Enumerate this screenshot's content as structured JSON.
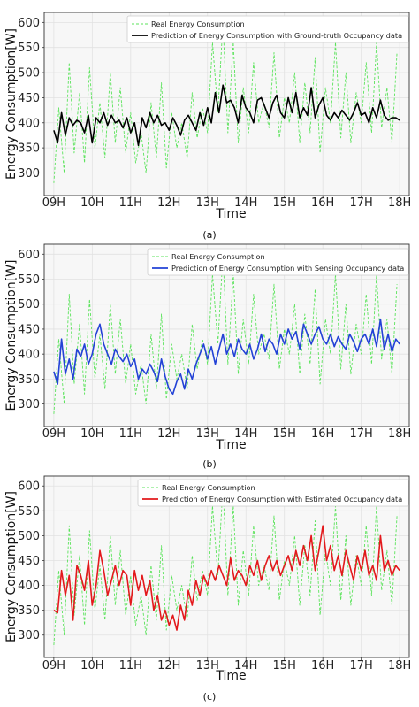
{
  "chart_data": [
    {
      "type": "line",
      "panel_label": "(a)",
      "xlabel": "Time",
      "ylabel": "Energy Consumption[W]",
      "x_ticks": [
        "09H",
        "10H",
        "11H",
        "12H",
        "13H",
        "14H",
        "15H",
        "16H",
        "17H",
        "18H"
      ],
      "xlim": [
        8.75,
        18.25
      ],
      "y_ticks": [
        300,
        350,
        400,
        450,
        500,
        550,
        600
      ],
      "ylim": [
        255,
        620
      ],
      "grid": true,
      "legend_position": "top-right",
      "series": [
        {
          "name": "Real Energy Consumption",
          "color": "#5be35b",
          "style": "dashed",
          "x": [
            9.0,
            9.13,
            9.27,
            9.4,
            9.53,
            9.67,
            9.8,
            9.93,
            10.07,
            10.2,
            10.33,
            10.47,
            10.6,
            10.73,
            10.87,
            11.0,
            11.13,
            11.27,
            11.4,
            11.53,
            11.67,
            11.8,
            11.93,
            12.07,
            12.2,
            12.33,
            12.47,
            12.6,
            12.73,
            12.87,
            13.0,
            13.13,
            13.27,
            13.4,
            13.53,
            13.67,
            13.8,
            13.93,
            14.07,
            14.2,
            14.33,
            14.47,
            14.6,
            14.73,
            14.87,
            15.0,
            15.13,
            15.27,
            15.4,
            15.53,
            15.67,
            15.8,
            15.93,
            16.07,
            16.2,
            16.33,
            16.47,
            16.6,
            16.73,
            16.87,
            17.0,
            17.13,
            17.27,
            17.4,
            17.53,
            17.67,
            17.8,
            17.93
          ],
          "y": [
            280,
            430,
            300,
            520,
            340,
            460,
            320,
            510,
            350,
            440,
            330,
            500,
            360,
            470,
            340,
            420,
            320,
            380,
            300,
            440,
            330,
            480,
            310,
            420,
            350,
            400,
            330,
            460,
            370,
            430,
            380,
            560,
            420,
            600,
            380,
            560,
            360,
            470,
            380,
            520,
            400,
            440,
            390,
            540,
            370,
            450,
            400,
            500,
            360,
            480,
            380,
            530,
            340,
            470,
            400,
            560,
            370,
            500,
            360,
            460,
            400,
            520,
            380,
            560,
            390,
            470,
            360,
            540
          ]
        },
        {
          "name": "Prediction of Energy Consumption with Ground-truth Occupancy data",
          "color": "#000000",
          "style": "solid",
          "x": [
            9.0,
            9.1,
            9.2,
            9.3,
            9.4,
            9.5,
            9.6,
            9.7,
            9.8,
            9.9,
            10.0,
            10.1,
            10.2,
            10.3,
            10.4,
            10.5,
            10.6,
            10.7,
            10.8,
            10.9,
            11.0,
            11.1,
            11.2,
            11.3,
            11.4,
            11.5,
            11.6,
            11.7,
            11.8,
            11.9,
            12.0,
            12.1,
            12.2,
            12.3,
            12.4,
            12.5,
            12.6,
            12.7,
            12.8,
            12.9,
            13.0,
            13.1,
            13.2,
            13.3,
            13.4,
            13.5,
            13.6,
            13.7,
            13.8,
            13.9,
            14.0,
            14.1,
            14.2,
            14.3,
            14.4,
            14.5,
            14.6,
            14.7,
            14.8,
            14.9,
            15.0,
            15.1,
            15.2,
            15.3,
            15.4,
            15.5,
            15.6,
            15.7,
            15.8,
            15.9,
            16.0,
            16.1,
            16.2,
            16.3,
            16.4,
            16.5,
            16.6,
            16.7,
            16.8,
            16.9,
            17.0,
            17.1,
            17.2,
            17.3,
            17.4,
            17.5,
            17.6,
            17.7,
            17.8,
            17.9,
            18.0
          ],
          "y": [
            385,
            360,
            420,
            375,
            410,
            395,
            405,
            400,
            380,
            415,
            360,
            410,
            400,
            420,
            395,
            415,
            400,
            405,
            390,
            410,
            380,
            400,
            355,
            410,
            390,
            420,
            400,
            415,
            395,
            400,
            385,
            410,
            395,
            375,
            405,
            415,
            400,
            385,
            420,
            395,
            430,
            400,
            460,
            420,
            475,
            440,
            445,
            430,
            400,
            455,
            430,
            420,
            400,
            445,
            450,
            430,
            410,
            440,
            455,
            420,
            410,
            450,
            420,
            460,
            410,
            430,
            415,
            470,
            410,
            435,
            450,
            415,
            405,
            420,
            410,
            425,
            415,
            405,
            420,
            440,
            415,
            420,
            400,
            430,
            410,
            445,
            415,
            405,
            410,
            410,
            405
          ]
        }
      ]
    },
    {
      "type": "line",
      "panel_label": "(b)",
      "xlabel": "Time",
      "ylabel": "Energy Consumption[W]",
      "x_ticks": [
        "09H",
        "10H",
        "11H",
        "12H",
        "13H",
        "14H",
        "15H",
        "16H",
        "17H",
        "18H"
      ],
      "xlim": [
        8.75,
        18.25
      ],
      "y_ticks": [
        300,
        350,
        400,
        450,
        500,
        550,
        600
      ],
      "ylim": [
        255,
        620
      ],
      "grid": true,
      "legend_position": "top-right",
      "series": [
        {
          "name": "Real Energy Consumption",
          "color": "#5be35b",
          "style": "dashed",
          "x": [
            9.0,
            9.13,
            9.27,
            9.4,
            9.53,
            9.67,
            9.8,
            9.93,
            10.07,
            10.2,
            10.33,
            10.47,
            10.6,
            10.73,
            10.87,
            11.0,
            11.13,
            11.27,
            11.4,
            11.53,
            11.67,
            11.8,
            11.93,
            12.07,
            12.2,
            12.33,
            12.47,
            12.6,
            12.73,
            12.87,
            13.0,
            13.13,
            13.27,
            13.4,
            13.53,
            13.67,
            13.8,
            13.93,
            14.07,
            14.2,
            14.33,
            14.47,
            14.6,
            14.73,
            14.87,
            15.0,
            15.13,
            15.27,
            15.4,
            15.53,
            15.67,
            15.8,
            15.93,
            16.07,
            16.2,
            16.33,
            16.47,
            16.6,
            16.73,
            16.87,
            17.0,
            17.13,
            17.27,
            17.4,
            17.53,
            17.67,
            17.8,
            17.93
          ],
          "y": [
            280,
            430,
            300,
            520,
            340,
            460,
            320,
            510,
            350,
            440,
            330,
            500,
            360,
            470,
            340,
            420,
            320,
            380,
            300,
            440,
            330,
            480,
            310,
            420,
            350,
            400,
            330,
            460,
            370,
            430,
            380,
            560,
            420,
            600,
            380,
            560,
            360,
            470,
            380,
            520,
            400,
            440,
            390,
            540,
            370,
            450,
            400,
            500,
            360,
            480,
            380,
            530,
            340,
            470,
            400,
            560,
            370,
            500,
            360,
            460,
            400,
            520,
            380,
            560,
            390,
            470,
            360,
            540
          ]
        },
        {
          "name": "Prediction of Energy Consumption with Sensing Occupancy data",
          "color": "#2342d6",
          "style": "solid",
          "x": [
            9.0,
            9.1,
            9.2,
            9.3,
            9.4,
            9.5,
            9.6,
            9.7,
            9.8,
            9.9,
            10.0,
            10.1,
            10.2,
            10.3,
            10.4,
            10.5,
            10.6,
            10.7,
            10.8,
            10.9,
            11.0,
            11.1,
            11.2,
            11.3,
            11.4,
            11.5,
            11.6,
            11.7,
            11.8,
            11.9,
            12.0,
            12.1,
            12.2,
            12.3,
            12.4,
            12.5,
            12.6,
            12.7,
            12.8,
            12.9,
            13.0,
            13.1,
            13.2,
            13.3,
            13.4,
            13.5,
            13.6,
            13.7,
            13.8,
            13.9,
            14.0,
            14.1,
            14.2,
            14.3,
            14.4,
            14.5,
            14.6,
            14.7,
            14.8,
            14.9,
            15.0,
            15.1,
            15.2,
            15.3,
            15.4,
            15.5,
            15.6,
            15.7,
            15.8,
            15.9,
            16.0,
            16.1,
            16.2,
            16.3,
            16.4,
            16.5,
            16.6,
            16.7,
            16.8,
            16.9,
            17.0,
            17.1,
            17.2,
            17.3,
            17.4,
            17.5,
            17.6,
            17.7,
            17.8,
            17.9,
            18.0
          ],
          "y": [
            365,
            340,
            430,
            360,
            390,
            350,
            410,
            395,
            420,
            380,
            400,
            440,
            460,
            420,
            400,
            380,
            410,
            395,
            385,
            400,
            375,
            390,
            350,
            370,
            360,
            380,
            365,
            345,
            390,
            355,
            330,
            320,
            345,
            360,
            330,
            370,
            350,
            380,
            400,
            420,
            390,
            415,
            380,
            410,
            440,
            400,
            420,
            395,
            430,
            410,
            400,
            420,
            390,
            410,
            440,
            405,
            430,
            420,
            400,
            440,
            420,
            450,
            430,
            445,
            410,
            460,
            440,
            420,
            440,
            455,
            430,
            420,
            440,
            415,
            435,
            420,
            410,
            440,
            425,
            405,
            430,
            440,
            420,
            450,
            415,
            470,
            410,
            440,
            405,
            430,
            420
          ]
        }
      ]
    },
    {
      "type": "line",
      "panel_label": "(c)",
      "xlabel": "Time",
      "ylabel": "Energy Consumption[W]",
      "x_ticks": [
        "09H",
        "10H",
        "11H",
        "12H",
        "13H",
        "14H",
        "15H",
        "16H",
        "17H",
        "18H"
      ],
      "xlim": [
        8.75,
        18.25
      ],
      "y_ticks": [
        300,
        350,
        400,
        450,
        500,
        550,
        600
      ],
      "ylim": [
        255,
        620
      ],
      "grid": true,
      "legend_position": "top-right",
      "series": [
        {
          "name": "Real Energy Consumption",
          "color": "#5be35b",
          "style": "dashed",
          "x": [
            9.0,
            9.13,
            9.27,
            9.4,
            9.53,
            9.67,
            9.8,
            9.93,
            10.07,
            10.2,
            10.33,
            10.47,
            10.6,
            10.73,
            10.87,
            11.0,
            11.13,
            11.27,
            11.4,
            11.53,
            11.67,
            11.8,
            11.93,
            12.07,
            12.2,
            12.33,
            12.47,
            12.6,
            12.73,
            12.87,
            13.0,
            13.13,
            13.27,
            13.4,
            13.53,
            13.67,
            13.8,
            13.93,
            14.07,
            14.2,
            14.33,
            14.47,
            14.6,
            14.73,
            14.87,
            15.0,
            15.13,
            15.27,
            15.4,
            15.53,
            15.67,
            15.8,
            15.93,
            16.07,
            16.2,
            16.33,
            16.47,
            16.6,
            16.73,
            16.87,
            17.0,
            17.13,
            17.27,
            17.4,
            17.53,
            17.67,
            17.8,
            17.93
          ],
          "y": [
            280,
            430,
            300,
            520,
            340,
            460,
            320,
            510,
            350,
            440,
            330,
            500,
            360,
            470,
            340,
            420,
            320,
            380,
            300,
            440,
            330,
            480,
            310,
            420,
            350,
            400,
            330,
            460,
            370,
            430,
            380,
            560,
            420,
            600,
            380,
            560,
            360,
            470,
            380,
            520,
            400,
            440,
            390,
            540,
            370,
            450,
            400,
            500,
            360,
            480,
            380,
            530,
            340,
            470,
            400,
            560,
            370,
            500,
            360,
            460,
            400,
            520,
            380,
            560,
            390,
            470,
            360,
            540
          ]
        },
        {
          "name": "Prediction of Energy Consumption with Estimated Occupancy data",
          "color": "#e3191c",
          "style": "solid",
          "x": [
            9.0,
            9.1,
            9.2,
            9.3,
            9.4,
            9.5,
            9.6,
            9.7,
            9.8,
            9.9,
            10.0,
            10.1,
            10.2,
            10.3,
            10.4,
            10.5,
            10.6,
            10.7,
            10.8,
            10.9,
            11.0,
            11.1,
            11.2,
            11.3,
            11.4,
            11.5,
            11.6,
            11.7,
            11.8,
            11.9,
            12.0,
            12.1,
            12.2,
            12.3,
            12.4,
            12.5,
            12.6,
            12.7,
            12.8,
            12.9,
            13.0,
            13.1,
            13.2,
            13.3,
            13.4,
            13.5,
            13.6,
            13.7,
            13.8,
            13.9,
            14.0,
            14.1,
            14.2,
            14.3,
            14.4,
            14.5,
            14.6,
            14.7,
            14.8,
            14.9,
            15.0,
            15.1,
            15.2,
            15.3,
            15.4,
            15.5,
            15.6,
            15.7,
            15.8,
            15.9,
            16.0,
            16.1,
            16.2,
            16.3,
            16.4,
            16.5,
            16.6,
            16.7,
            16.8,
            16.9,
            17.0,
            17.1,
            17.2,
            17.3,
            17.4,
            17.5,
            17.6,
            17.7,
            17.8,
            17.9,
            18.0
          ],
          "y": [
            350,
            345,
            430,
            380,
            420,
            330,
            440,
            420,
            390,
            450,
            360,
            400,
            470,
            430,
            380,
            410,
            440,
            400,
            430,
            420,
            360,
            430,
            390,
            420,
            380,
            410,
            350,
            380,
            330,
            350,
            320,
            340,
            310,
            360,
            330,
            390,
            360,
            410,
            380,
            420,
            400,
            430,
            410,
            440,
            420,
            400,
            455,
            410,
            430,
            420,
            400,
            440,
            420,
            450,
            410,
            440,
            460,
            430,
            450,
            420,
            440,
            460,
            430,
            470,
            440,
            480,
            450,
            500,
            430,
            470,
            520,
            450,
            480,
            430,
            460,
            420,
            470,
            440,
            410,
            460,
            430,
            470,
            420,
            440,
            410,
            500,
            430,
            450,
            420,
            440,
            430
          ]
        }
      ]
    }
  ]
}
